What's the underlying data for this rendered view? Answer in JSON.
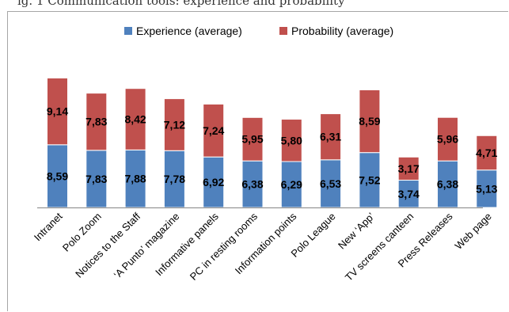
{
  "caption": "ig. 1  Communication tools: experience and probability",
  "colors": {
    "experience": "#4f81bd",
    "probability": "#c0504d",
    "axis": "#868686"
  },
  "chart_data": {
    "type": "bar",
    "stacked": true,
    "categories": [
      "Intranet",
      "Polo Zoom",
      "Notices to the Staff",
      "‘A Punto’ magazine",
      "Informative panels",
      "PC in resting rooms",
      "Information points",
      "Polo League",
      "New ‘App’",
      "TV screens canteen",
      "Press Releases",
      "Web page"
    ],
    "series": [
      {
        "name": "Experience (average)",
        "values": [
          8.59,
          7.83,
          7.88,
          7.78,
          6.92,
          6.38,
          6.29,
          6.53,
          7.52,
          3.74,
          6.38,
          5.13
        ],
        "labels": [
          "8,59",
          "7,83",
          "7,88",
          "7,78",
          "6,92",
          "6,38",
          "6,29",
          "6,53",
          "7,52",
          "3,74",
          "6,38",
          "5,13"
        ]
      },
      {
        "name": "Probability (average)",
        "values": [
          9.14,
          7.83,
          8.42,
          7.12,
          7.24,
          5.95,
          5.8,
          6.31,
          8.59,
          3.17,
          5.96,
          4.71
        ],
        "labels": [
          "9,14",
          "7,83",
          "8,42",
          "7,12",
          "7,24",
          "5,95",
          "5,80",
          "6,31",
          "8,59",
          "3,17",
          "5,96",
          "4,71"
        ]
      }
    ],
    "ylim": [
      0,
      18
    ],
    "legend": "top",
    "grid": false
  }
}
